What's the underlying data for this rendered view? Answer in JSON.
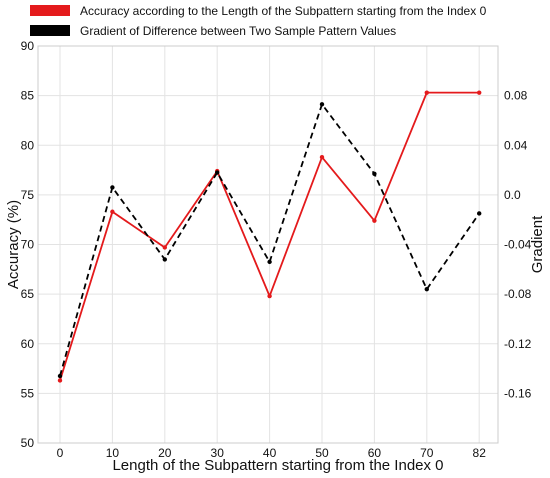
{
  "chart_data": {
    "type": "line",
    "categories": [
      "0",
      "10",
      "20",
      "30",
      "40",
      "50",
      "60",
      "70",
      "82"
    ],
    "xlabel": "Length of the Subpattern starting from the Index 0",
    "left_axis": {
      "label": "Accuracy (%)",
      "ylim": [
        50,
        90
      ],
      "ticks": [
        50,
        55,
        60,
        65,
        70,
        75,
        80,
        85,
        90
      ]
    },
    "right_axis": {
      "label": "Gradient",
      "ylim": [
        -0.2,
        0.12
      ],
      "ticks": [
        -0.16,
        -0.12,
        -0.08,
        -0.04,
        0.0,
        0.04,
        0.08
      ],
      "tick_labels": [
        "-0.16",
        "-0.12",
        "-0.08",
        "-0.04",
        "0.0",
        "0.04",
        "0.08"
      ]
    },
    "grid": true,
    "legend_position": "top-left, above plot",
    "series": [
      {
        "name": "Accuracy according to the Length of the Subpattern starting from the Index 0",
        "axis": "left",
        "color": "#e41a1c",
        "style": "solid",
        "values": [
          56.3,
          73.3,
          69.7,
          77.4,
          64.8,
          78.8,
          72.4,
          85.3,
          85.3
        ]
      },
      {
        "name": "Gradient of Difference between Two Sample Pattern Values",
        "axis": "right",
        "color": "#000000",
        "style": "dashed",
        "values": [
          -0.146,
          0.006,
          -0.052,
          0.018,
          -0.054,
          0.073,
          0.017,
          -0.076,
          -0.015
        ]
      }
    ]
  }
}
